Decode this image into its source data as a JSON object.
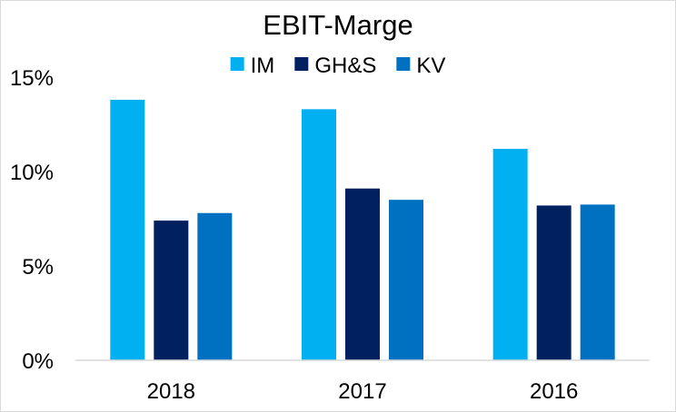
{
  "chart_data": {
    "type": "bar",
    "title": "EBIT-Marge",
    "xlabel": "",
    "ylabel": "",
    "categories": [
      "2018",
      "2017",
      "2016"
    ],
    "series": [
      {
        "name": "IM",
        "color": "#00b0f0",
        "values": [
          13.8,
          13.3,
          11.2
        ]
      },
      {
        "name": "GH&S",
        "color": "#002060",
        "values": [
          7.4,
          9.1,
          8.2
        ]
      },
      {
        "name": "KV",
        "color": "#0070c0",
        "values": [
          7.8,
          8.5,
          8.25
        ]
      }
    ],
    "y_ticks": [
      {
        "value": 0,
        "label": "0%"
      },
      {
        "value": 5,
        "label": "5%"
      },
      {
        "value": 10,
        "label": "10%"
      },
      {
        "value": 15,
        "label": "15%"
      }
    ],
    "ylim": [
      0,
      15
    ],
    "grid": false,
    "legend_position": "top"
  }
}
